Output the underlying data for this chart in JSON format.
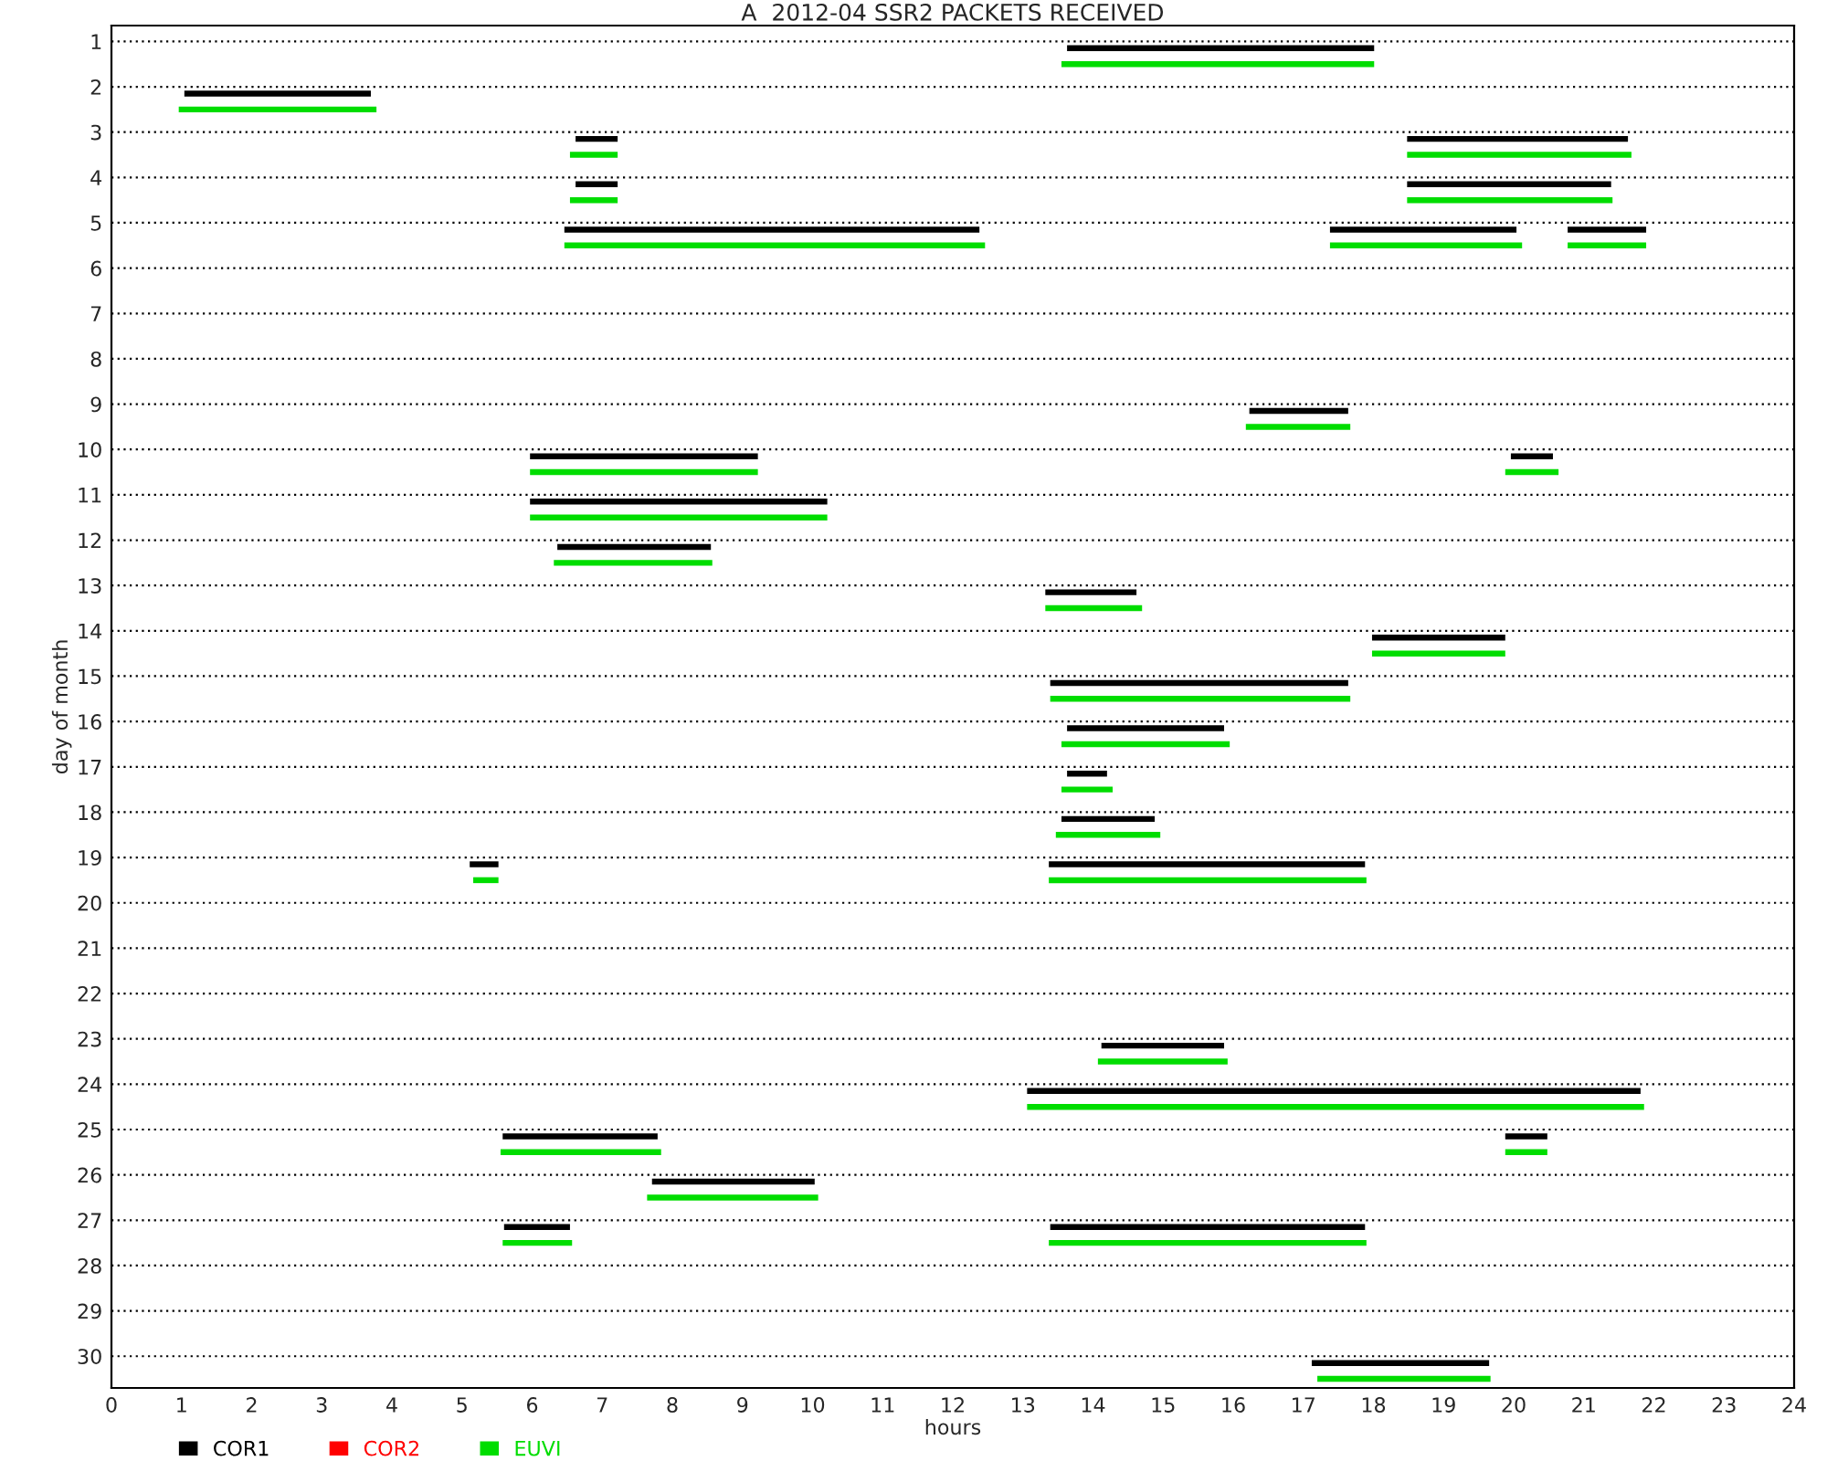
{
  "chart_data": {
    "type": "bar",
    "orientation": "horizontal",
    "title": "A  2012-04 SSR2 PACKETS RECEIVED",
    "xlabel": "hours",
    "ylabel": "day of month",
    "categories": [
      "1",
      "2",
      "3",
      "4",
      "5",
      "6",
      "7",
      "8",
      "9",
      "10",
      "11",
      "12",
      "13",
      "14",
      "15",
      "16",
      "17",
      "18",
      "19",
      "20",
      "21",
      "22",
      "23",
      "24",
      "25",
      "26",
      "27",
      "28",
      "29",
      "30"
    ],
    "xlim": [
      0,
      24
    ],
    "xticks": [
      0,
      1,
      2,
      3,
      4,
      5,
      6,
      7,
      8,
      9,
      10,
      11,
      12,
      13,
      14,
      15,
      16,
      17,
      18,
      19,
      20,
      21,
      22,
      23,
      24
    ],
    "grid": "y",
    "legend": "bottom left",
    "series": [
      {
        "name": "COR1",
        "color": "#000000",
        "base": [
          13.63,
          1.04,
          6.62,
          6.62,
          6.46,
          null,
          null,
          null,
          16.23,
          5.97,
          5.97,
          6.36,
          13.32,
          17.98,
          13.39,
          13.63,
          13.63,
          13.55,
          5.11,
          null,
          null,
          null,
          14.12,
          13.06,
          5.58,
          7.71,
          5.6,
          null,
          null,
          17.12
        ],
        "values": [
          4.38,
          2.66,
          0.6,
          0.6,
          5.92,
          null,
          null,
          null,
          1.41,
          3.25,
          4.24,
          2.19,
          1.3,
          1.9,
          4.25,
          2.24,
          0.57,
          1.33,
          0.41,
          null,
          null,
          null,
          1.75,
          8.75,
          2.21,
          2.32,
          0.94,
          null,
          null,
          2.53
        ]
      },
      {
        "color": "#000000",
        "base": [
          null,
          null,
          18.48,
          18.48,
          17.38,
          null,
          null,
          null,
          null,
          19.96,
          null,
          null,
          null,
          null,
          null,
          null,
          null,
          null,
          13.37,
          null,
          null,
          null,
          null,
          null,
          19.88,
          null,
          13.39,
          null,
          null,
          null
        ],
        "values": [
          null,
          null,
          3.15,
          2.91,
          2.66,
          null,
          null,
          null,
          null,
          0.6,
          null,
          null,
          null,
          null,
          null,
          null,
          null,
          null,
          4.51,
          null,
          null,
          null,
          null,
          null,
          0.6,
          null,
          4.49,
          null,
          null,
          null
        ]
      },
      {
        "color": "#000000",
        "base": [
          null,
          null,
          null,
          null,
          20.77,
          null,
          null,
          null,
          null,
          null,
          null,
          null,
          null,
          null,
          null,
          null,
          null,
          null,
          null,
          null,
          null,
          null,
          null,
          null,
          null,
          null,
          null,
          null,
          null,
          null
        ],
        "values": [
          null,
          null,
          null,
          null,
          1.12,
          null,
          null,
          null,
          null,
          null,
          null,
          null,
          null,
          null,
          null,
          null,
          null,
          null,
          null,
          null,
          null,
          null,
          null,
          null,
          null,
          null,
          null,
          null,
          null,
          null
        ]
      },
      {
        "name": "COR2",
        "color": "#ff0000",
        "values": [
          null,
          null,
          null,
          null,
          null,
          null,
          null,
          null,
          null,
          null,
          null,
          null,
          null,
          null,
          null,
          null,
          null,
          null,
          null,
          null,
          null,
          null,
          null,
          null,
          null,
          null,
          null,
          null,
          null,
          null
        ]
      },
      {
        "name": "EUVI",
        "color": "#00dd00",
        "base": [
          13.55,
          0.96,
          6.54,
          6.54,
          6.46,
          null,
          null,
          null,
          16.18,
          5.97,
          5.97,
          6.31,
          13.32,
          17.98,
          13.39,
          13.55,
          13.55,
          13.47,
          5.16,
          null,
          null,
          null,
          14.07,
          13.06,
          5.55,
          7.64,
          5.58,
          null,
          null,
          17.2
        ],
        "values": [
          4.46,
          2.82,
          0.68,
          0.68,
          6.0,
          null,
          null,
          null,
          1.49,
          3.25,
          4.24,
          2.26,
          1.38,
          1.9,
          4.28,
          2.4,
          0.73,
          1.49,
          0.36,
          null,
          null,
          null,
          1.85,
          8.8,
          2.29,
          2.44,
          0.99,
          null,
          null,
          2.47
        ]
      },
      {
        "color": "#00dd00",
        "base": [
          null,
          null,
          18.48,
          18.48,
          17.38,
          null,
          null,
          null,
          null,
          19.88,
          null,
          null,
          null,
          null,
          null,
          null,
          null,
          null,
          13.37,
          null,
          null,
          null,
          null,
          null,
          19.88,
          null,
          13.37,
          null,
          null,
          null
        ],
        "values": [
          null,
          null,
          3.2,
          2.93,
          2.74,
          null,
          null,
          null,
          null,
          0.76,
          null,
          null,
          null,
          null,
          null,
          null,
          null,
          null,
          4.53,
          null,
          null,
          null,
          null,
          null,
          0.6,
          null,
          4.53,
          null,
          null,
          null
        ]
      },
      {
        "color": "#00dd00",
        "base": [
          null,
          null,
          null,
          null,
          20.77,
          null,
          null,
          null,
          null,
          null,
          null,
          null,
          null,
          null,
          null,
          null,
          null,
          null,
          null,
          null,
          null,
          null,
          null,
          null,
          null,
          null,
          null,
          null,
          null,
          null
        ],
        "values": [
          null,
          null,
          null,
          null,
          1.12,
          null,
          null,
          null,
          null,
          null,
          null,
          null,
          null,
          null,
          null,
          null,
          null,
          null,
          null,
          null,
          null,
          null,
          null,
          null,
          null,
          null,
          null,
          null,
          null,
          null
        ]
      }
    ]
  }
}
